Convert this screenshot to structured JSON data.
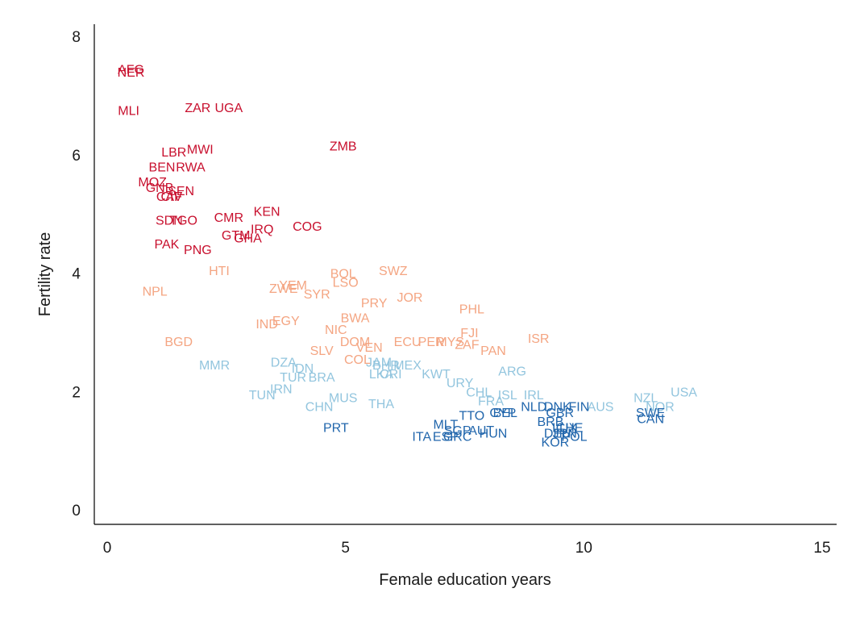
{
  "chart_data": {
    "type": "scatter",
    "title": "",
    "xlabel": "Female education years",
    "ylabel": "Fertility rate",
    "xlim": [
      0,
      15
    ],
    "ylim": [
      0,
      8
    ],
    "xticks": [
      0,
      5,
      10,
      15
    ],
    "yticks": [
      0,
      2,
      4,
      6,
      8
    ],
    "grid": false,
    "legend": "none",
    "marker": "text-label",
    "groups": {
      "very_high": {
        "color": "#c8102e"
      },
      "high": {
        "color": "#f4a582"
      },
      "medium": {
        "color": "#92c5de"
      },
      "low": {
        "color": "#2166ac"
      }
    },
    "points": [
      {
        "label": "AFG",
        "x": 0.5,
        "y": 7.45,
        "group": "very_high"
      },
      {
        "label": "NER",
        "x": 0.5,
        "y": 7.4,
        "group": "very_high"
      },
      {
        "label": "MLI",
        "x": 0.45,
        "y": 6.75,
        "group": "very_high"
      },
      {
        "label": "ZAR",
        "x": 1.9,
        "y": 6.8,
        "group": "very_high"
      },
      {
        "label": "UGA",
        "x": 2.55,
        "y": 6.8,
        "group": "very_high"
      },
      {
        "label": "ZMB",
        "x": 4.95,
        "y": 6.15,
        "group": "very_high"
      },
      {
        "label": "LBR",
        "x": 1.4,
        "y": 6.05,
        "group": "very_high"
      },
      {
        "label": "MWI",
        "x": 1.95,
        "y": 6.1,
        "group": "very_high"
      },
      {
        "label": "BEN",
        "x": 1.15,
        "y": 5.8,
        "group": "very_high"
      },
      {
        "label": "RWA",
        "x": 1.75,
        "y": 5.8,
        "group": "very_high"
      },
      {
        "label": "MOZ",
        "x": 0.95,
        "y": 5.55,
        "group": "very_high"
      },
      {
        "label": "GNB",
        "x": 1.1,
        "y": 5.45,
        "group": "very_high"
      },
      {
        "label": "SEN",
        "x": 1.55,
        "y": 5.4,
        "group": "very_high"
      },
      {
        "label": "CAF",
        "x": 1.3,
        "y": 5.3,
        "group": "very_high"
      },
      {
        "label": "CIV",
        "x": 1.35,
        "y": 5.3,
        "group": "very_high"
      },
      {
        "label": "SDN",
        "x": 1.3,
        "y": 4.9,
        "group": "very_high"
      },
      {
        "label": "TGO",
        "x": 1.6,
        "y": 4.9,
        "group": "very_high"
      },
      {
        "label": "CMR",
        "x": 2.55,
        "y": 4.95,
        "group": "very_high"
      },
      {
        "label": "KEN",
        "x": 3.35,
        "y": 5.05,
        "group": "very_high"
      },
      {
        "label": "IRQ",
        "x": 3.25,
        "y": 4.75,
        "group": "very_high"
      },
      {
        "label": "GTM",
        "x": 2.7,
        "y": 4.65,
        "group": "very_high"
      },
      {
        "label": "GHA",
        "x": 2.95,
        "y": 4.6,
        "group": "very_high"
      },
      {
        "label": "COG",
        "x": 4.2,
        "y": 4.8,
        "group": "very_high"
      },
      {
        "label": "PAK",
        "x": 1.25,
        "y": 4.5,
        "group": "very_high"
      },
      {
        "label": "PNG",
        "x": 1.9,
        "y": 4.4,
        "group": "very_high"
      },
      {
        "label": "HTI",
        "x": 2.35,
        "y": 4.05,
        "group": "high"
      },
      {
        "label": "NPL",
        "x": 1.0,
        "y": 3.7,
        "group": "high"
      },
      {
        "label": "ZWE",
        "x": 3.7,
        "y": 3.75,
        "group": "high"
      },
      {
        "label": "YEM",
        "x": 3.9,
        "y": 3.8,
        "group": "high"
      },
      {
        "label": "SYR",
        "x": 4.4,
        "y": 3.65,
        "group": "high"
      },
      {
        "label": "BOL",
        "x": 4.95,
        "y": 4.0,
        "group": "high"
      },
      {
        "label": "LSO",
        "x": 5.0,
        "y": 3.85,
        "group": "high"
      },
      {
        "label": "SWZ",
        "x": 6.0,
        "y": 4.05,
        "group": "high"
      },
      {
        "label": "PRY",
        "x": 5.6,
        "y": 3.5,
        "group": "high"
      },
      {
        "label": "JOR",
        "x": 6.35,
        "y": 3.6,
        "group": "high"
      },
      {
        "label": "IND",
        "x": 3.35,
        "y": 3.15,
        "group": "high"
      },
      {
        "label": "EGY",
        "x": 3.75,
        "y": 3.2,
        "group": "high"
      },
      {
        "label": "BWA",
        "x": 5.2,
        "y": 3.25,
        "group": "high"
      },
      {
        "label": "NIC",
        "x": 4.8,
        "y": 3.05,
        "group": "high"
      },
      {
        "label": "DOM",
        "x": 5.2,
        "y": 2.85,
        "group": "high"
      },
      {
        "label": "VEN",
        "x": 5.5,
        "y": 2.75,
        "group": "high"
      },
      {
        "label": "ECU",
        "x": 6.3,
        "y": 2.85,
        "group": "high"
      },
      {
        "label": "PER",
        "x": 6.8,
        "y": 2.85,
        "group": "high"
      },
      {
        "label": "MYS",
        "x": 7.2,
        "y": 2.85,
        "group": "high"
      },
      {
        "label": "FJI",
        "x": 7.6,
        "y": 3.0,
        "group": "high"
      },
      {
        "label": "ZAF",
        "x": 7.55,
        "y": 2.8,
        "group": "high"
      },
      {
        "label": "PAN",
        "x": 8.1,
        "y": 2.7,
        "group": "high"
      },
      {
        "label": "PHL",
        "x": 7.65,
        "y": 3.4,
        "group": "high"
      },
      {
        "label": "ISR",
        "x": 9.05,
        "y": 2.9,
        "group": "high"
      },
      {
        "label": "BGD",
        "x": 1.5,
        "y": 2.85,
        "group": "high"
      },
      {
        "label": "SLV",
        "x": 4.5,
        "y": 2.7,
        "group": "high"
      },
      {
        "label": "COL",
        "x": 5.25,
        "y": 2.55,
        "group": "high"
      },
      {
        "label": "MMR",
        "x": 2.25,
        "y": 2.45,
        "group": "medium"
      },
      {
        "label": "DZA",
        "x": 3.7,
        "y": 2.5,
        "group": "medium"
      },
      {
        "label": "IDN",
        "x": 4.1,
        "y": 2.4,
        "group": "medium"
      },
      {
        "label": "TUR",
        "x": 3.9,
        "y": 2.25,
        "group": "medium"
      },
      {
        "label": "BRA",
        "x": 4.5,
        "y": 2.25,
        "group": "medium"
      },
      {
        "label": "TUN",
        "x": 3.25,
        "y": 1.95,
        "group": "medium"
      },
      {
        "label": "IRN",
        "x": 3.65,
        "y": 2.05,
        "group": "medium"
      },
      {
        "label": "JAM",
        "x": 5.7,
        "y": 2.5,
        "group": "medium"
      },
      {
        "label": "BHR",
        "x": 5.85,
        "y": 2.45,
        "group": "medium"
      },
      {
        "label": "MEX",
        "x": 6.3,
        "y": 2.45,
        "group": "medium"
      },
      {
        "label": "LKA",
        "x": 5.75,
        "y": 2.3,
        "group": "medium"
      },
      {
        "label": "CRI",
        "x": 5.95,
        "y": 2.3,
        "group": "medium"
      },
      {
        "label": "KWT",
        "x": 6.9,
        "y": 2.3,
        "group": "medium"
      },
      {
        "label": "ARG",
        "x": 8.5,
        "y": 2.35,
        "group": "medium"
      },
      {
        "label": "MUS",
        "x": 4.95,
        "y": 1.9,
        "group": "medium"
      },
      {
        "label": "CHN",
        "x": 4.45,
        "y": 1.75,
        "group": "medium"
      },
      {
        "label": "THA",
        "x": 5.75,
        "y": 1.8,
        "group": "medium"
      },
      {
        "label": "URY",
        "x": 7.4,
        "y": 2.15,
        "group": "medium"
      },
      {
        "label": "CHL",
        "x": 7.8,
        "y": 2.0,
        "group": "medium"
      },
      {
        "label": "FRA",
        "x": 8.05,
        "y": 1.85,
        "group": "medium"
      },
      {
        "label": "ISL",
        "x": 8.4,
        "y": 1.95,
        "group": "medium"
      },
      {
        "label": "IRL",
        "x": 8.95,
        "y": 1.95,
        "group": "medium"
      },
      {
        "label": "AUS",
        "x": 10.35,
        "y": 1.75,
        "group": "medium"
      },
      {
        "label": "NZL",
        "x": 11.3,
        "y": 1.9,
        "group": "medium"
      },
      {
        "label": "NOR",
        "x": 11.6,
        "y": 1.75,
        "group": "medium"
      },
      {
        "label": "USA",
        "x": 12.1,
        "y": 2.0,
        "group": "medium"
      },
      {
        "label": "PRT",
        "x": 4.8,
        "y": 1.4,
        "group": "low"
      },
      {
        "label": "ITA",
        "x": 6.6,
        "y": 1.25,
        "group": "low"
      },
      {
        "label": "MLT",
        "x": 7.1,
        "y": 1.45,
        "group": "low"
      },
      {
        "label": "ESP",
        "x": 7.1,
        "y": 1.25,
        "group": "low"
      },
      {
        "label": "GRC",
        "x": 7.35,
        "y": 1.25,
        "group": "low"
      },
      {
        "label": "SGP",
        "x": 7.35,
        "y": 1.35,
        "group": "low"
      },
      {
        "label": "AUT",
        "x": 7.85,
        "y": 1.35,
        "group": "low"
      },
      {
        "label": "TTO",
        "x": 7.65,
        "y": 1.6,
        "group": "low"
      },
      {
        "label": "HUN",
        "x": 8.1,
        "y": 1.3,
        "group": "low"
      },
      {
        "label": "CYP",
        "x": 8.3,
        "y": 1.65,
        "group": "low"
      },
      {
        "label": "BEL",
        "x": 8.35,
        "y": 1.65,
        "group": "low"
      },
      {
        "label": "NLD",
        "x": 8.95,
        "y": 1.75,
        "group": "low"
      },
      {
        "label": "DNK",
        "x": 9.45,
        "y": 1.75,
        "group": "low"
      },
      {
        "label": "GBR",
        "x": 9.5,
        "y": 1.65,
        "group": "low"
      },
      {
        "label": "FIN",
        "x": 9.9,
        "y": 1.75,
        "group": "low"
      },
      {
        "label": "BRB",
        "x": 9.3,
        "y": 1.5,
        "group": "low"
      },
      {
        "label": "CHE",
        "x": 9.7,
        "y": 1.4,
        "group": "low"
      },
      {
        "label": "LUX",
        "x": 9.6,
        "y": 1.4,
        "group": "low"
      },
      {
        "label": "DEU",
        "x": 9.45,
        "y": 1.3,
        "group": "low"
      },
      {
        "label": "JPN",
        "x": 9.6,
        "y": 1.3,
        "group": "low"
      },
      {
        "label": "POL",
        "x": 9.8,
        "y": 1.25,
        "group": "low"
      },
      {
        "label": "KOR",
        "x": 9.4,
        "y": 1.15,
        "group": "low"
      },
      {
        "label": "SWE",
        "x": 11.4,
        "y": 1.65,
        "group": "low"
      },
      {
        "label": "CAN",
        "x": 11.4,
        "y": 1.55,
        "group": "low"
      }
    ]
  }
}
